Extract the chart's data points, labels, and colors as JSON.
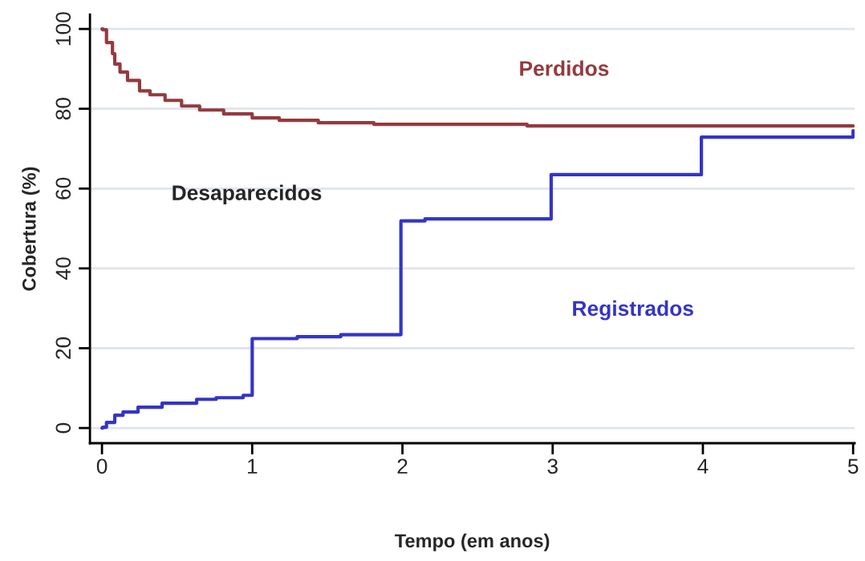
{
  "chart_data": {
    "type": "step",
    "xlabel": "Tempo (em anos)",
    "ylabel": "Cobertura (%)",
    "annotations": [
      "Desaparecidos"
    ],
    "series": [
      {
        "name": "Perdidos",
        "color": "#943a3f",
        "x": [
          0,
          0.005,
          0.03,
          0.07,
          0.085,
          0.12,
          0.17,
          0.25,
          0.32,
          0.42,
          0.53,
          0.65,
          0.81,
          1.0,
          1.18,
          1.44,
          1.81,
          2.83,
          5.0
        ],
        "values": [
          100,
          99.8,
          96.6,
          93.8,
          91.2,
          89.2,
          87.1,
          84.5,
          83.5,
          82.1,
          80.7,
          79.7,
          78.7,
          77.7,
          77.1,
          76.5,
          76.1,
          75.7,
          75.7
        ]
      },
      {
        "name": "Registrados",
        "color": "#3434c8",
        "x": [
          0,
          0.005,
          0.03,
          0.085,
          0.14,
          0.24,
          0.4,
          0.63,
          0.76,
          0.94,
          1.0,
          1.3,
          1.59,
          1.99,
          2.15,
          2.99,
          3.99,
          5.0
        ],
        "values": [
          0,
          0.2,
          1.4,
          3.2,
          4.0,
          5.2,
          6.2,
          7.2,
          7.6,
          8.2,
          22.4,
          22.9,
          23.4,
          51.9,
          52.4,
          63.5,
          72.9,
          74.5
        ]
      }
    ],
    "xlim": [
      -0.08,
      5.01
    ],
    "ylim": [
      -3.8,
      103.6
    ],
    "xticks": [
      0,
      1,
      2,
      3,
      4,
      5
    ],
    "yticks": [
      0,
      20,
      40,
      60,
      80,
      100
    ],
    "grid": "y",
    "legend": false
  }
}
